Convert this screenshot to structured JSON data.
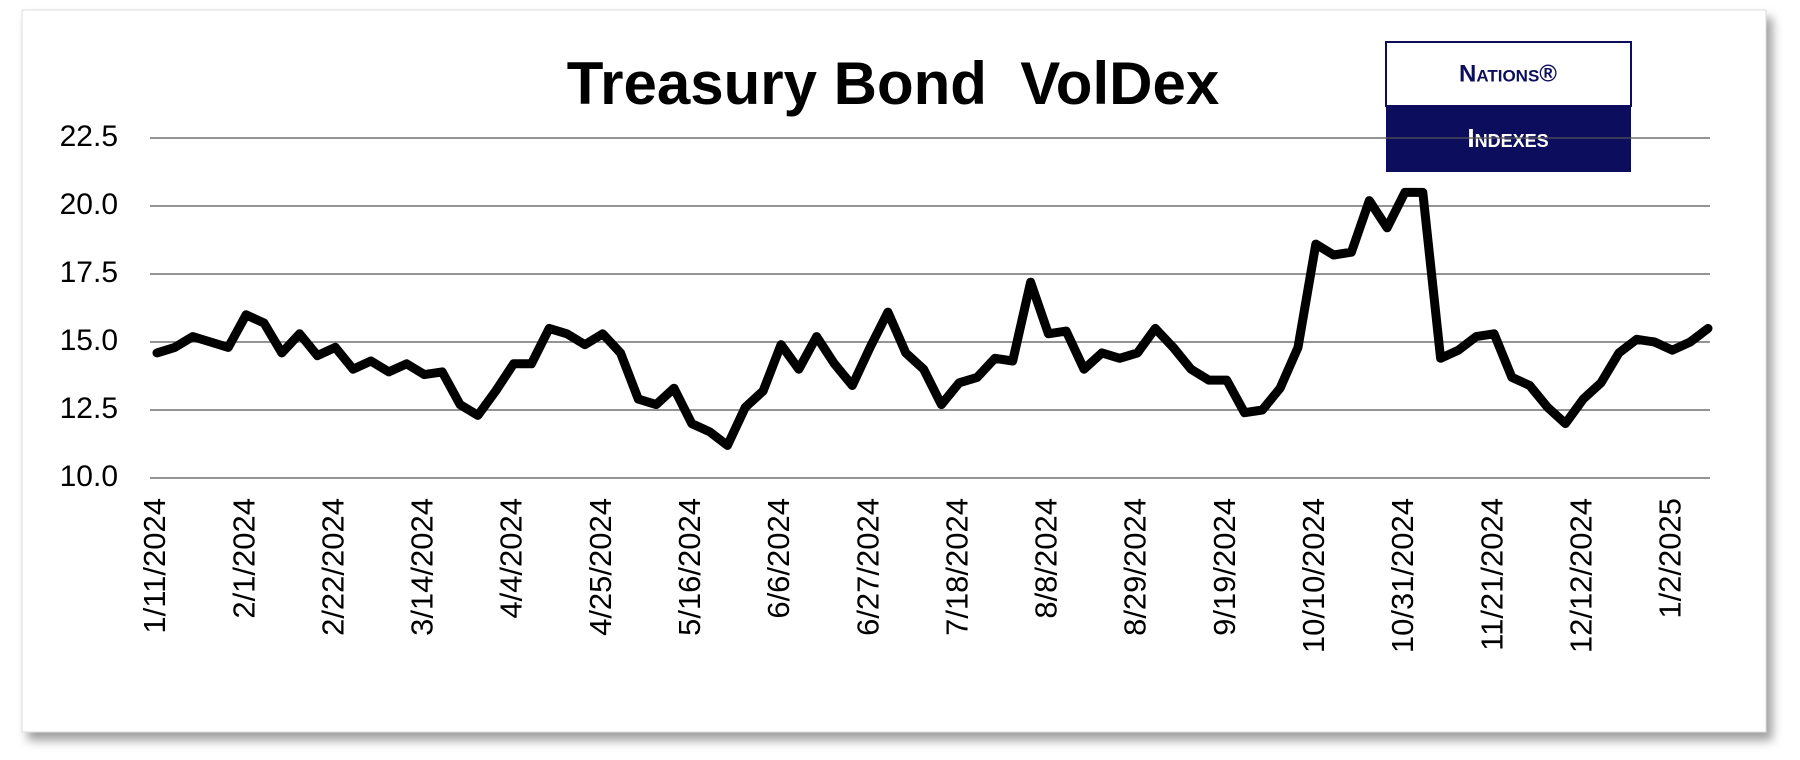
{
  "chart_data": {
    "type": "line",
    "title": "Treasury Bond  VolDex",
    "logo": {
      "top": "Nations®",
      "bottom": "Indexes"
    },
    "color": "#000000",
    "grid": true,
    "categories": [
      "1/11/2024",
      null,
      null,
      null,
      null,
      "2/1/2024",
      null,
      null,
      null,
      null,
      "2/22/2024",
      null,
      null,
      null,
      null,
      "3/14/2024",
      null,
      null,
      null,
      null,
      "4/4/2024",
      null,
      null,
      null,
      null,
      "4/25/2024",
      null,
      null,
      null,
      null,
      "5/16/2024",
      null,
      null,
      null,
      null,
      "6/6/2024",
      null,
      null,
      null,
      null,
      "6/27/2024",
      null,
      null,
      null,
      null,
      "7/18/2024",
      null,
      null,
      null,
      null,
      "8/8/2024",
      null,
      null,
      null,
      null,
      "8/29/2024",
      null,
      null,
      null,
      null,
      "9/19/2024",
      null,
      null,
      null,
      null,
      "10/10/2024",
      null,
      null,
      null,
      null,
      "10/31/2024",
      null,
      null,
      null,
      null,
      "11/21/2024",
      null,
      null,
      null,
      null,
      "12/12/2024",
      null,
      null,
      null,
      null,
      "1/2/2025",
      null,
      null
    ],
    "values": [
      14.6,
      14.8,
      15.2,
      15.0,
      14.8,
      16.0,
      15.7,
      14.6,
      15.3,
      14.5,
      14.8,
      14.0,
      14.3,
      13.9,
      14.2,
      13.8,
      13.9,
      12.7,
      12.3,
      13.2,
      14.2,
      14.2,
      15.5,
      15.3,
      14.9,
      15.3,
      14.6,
      12.9,
      12.7,
      13.3,
      12.0,
      11.7,
      11.2,
      12.6,
      13.2,
      14.9,
      14.0,
      15.2,
      14.2,
      13.4,
      14.8,
      16.1,
      14.6,
      14.0,
      12.7,
      13.5,
      13.7,
      14.4,
      14.3,
      17.2,
      15.3,
      15.4,
      14.0,
      14.6,
      14.4,
      14.6,
      15.5,
      14.8,
      14.0,
      13.6,
      13.6,
      12.4,
      12.5,
      13.3,
      14.8,
      18.6,
      18.2,
      18.3,
      20.2,
      19.2,
      20.5,
      20.5,
      14.4,
      14.7,
      15.2,
      15.3,
      13.7,
      13.4,
      12.6,
      12.0,
      12.9,
      13.5,
      14.6,
      15.1,
      15.0,
      14.7,
      15.0,
      15.5
    ],
    "ylim": [
      10,
      22.5
    ],
    "yticks": [
      {
        "value": 10,
        "label": "10.0"
      },
      12.5,
      {
        "value": 15,
        "label": "15.0"
      },
      17.5,
      {
        "value": 20,
        "label": "20.0"
      },
      22.5
    ]
  }
}
